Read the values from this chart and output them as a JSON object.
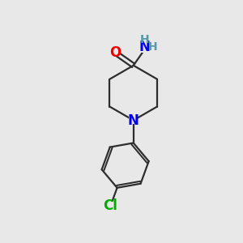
{
  "background_color": "#e8e8e8",
  "bond_color": "#2d2d2d",
  "bond_width": 1.6,
  "N_color": "#0000ee",
  "O_color": "#ee0000",
  "Cl_color": "#00aa00",
  "H_color": "#5599aa",
  "font_size_atoms": 12,
  "font_size_H": 10,
  "xlim": [
    0,
    10
  ],
  "ylim": [
    0,
    10
  ]
}
